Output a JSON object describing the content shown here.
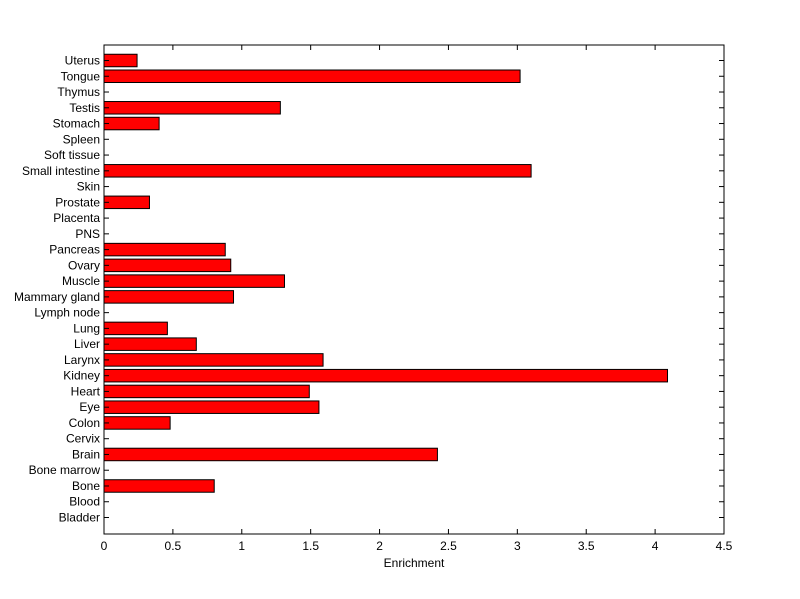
{
  "chart_data": {
    "type": "bar",
    "orientation": "horizontal",
    "categories": [
      "Bladder",
      "Blood",
      "Bone",
      "Bone marrow",
      "Brain",
      "Cervix",
      "Colon",
      "Eye",
      "Heart",
      "Kidney",
      "Larynx",
      "Liver",
      "Lung",
      "Lymph node",
      "Mammary gland",
      "Muscle",
      "Ovary",
      "Pancreas",
      "PNS",
      "Placenta",
      "Prostate",
      "Skin",
      "Small intestine",
      "Soft tissue",
      "Spleen",
      "Stomach",
      "Testis",
      "Thymus",
      "Tongue",
      "Uterus"
    ],
    "values": [
      0,
      0,
      0.8,
      0,
      2.42,
      0,
      0.48,
      1.56,
      1.49,
      4.09,
      1.59,
      0.67,
      0.46,
      0,
      0.94,
      1.31,
      0.92,
      0.88,
      0,
      0,
      0.33,
      0,
      3.1,
      0,
      0,
      0.4,
      1.28,
      0,
      3.02,
      0.24
    ],
    "xlabel": "Enrichment",
    "ylabel": "",
    "title": "",
    "xlim": [
      0,
      4.5
    ],
    "xticks": [
      "0",
      "0.5",
      "1",
      "1.5",
      "2",
      "2.5",
      "3",
      "3.5",
      "4",
      "4.5"
    ],
    "grid": false,
    "colors": {
      "bar_fill": "#ff0000",
      "bar_stroke": "#000000",
      "axis": "#000000",
      "background": "#ffffff"
    }
  }
}
